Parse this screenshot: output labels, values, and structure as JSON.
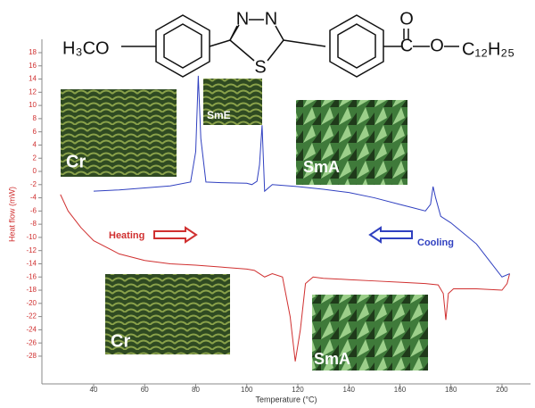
{
  "chart_data": {
    "type": "line",
    "xlabel": "Temperature (°C)",
    "ylabel": "Heat flow (mW)",
    "xlim": [
      20,
      210
    ],
    "xticks": [
      40,
      60,
      80,
      100,
      120,
      140,
      160,
      180,
      200
    ],
    "ylim": [
      -32,
      20
    ],
    "yticks": [
      -28,
      -26,
      -24,
      -22,
      -20,
      -18,
      -16,
      -14,
      -12,
      -10,
      -8,
      -6,
      -4,
      -2,
      0,
      2,
      4,
      6,
      8,
      10,
      12,
      14,
      16,
      18
    ],
    "series": [
      {
        "name": "Heating",
        "color": "#d03030",
        "x": [
          27,
          30,
          35,
          40,
          50,
          60,
          70,
          80,
          90,
          100,
          103,
          105,
          107,
          110,
          114,
          117,
          119,
          121,
          123,
          126,
          130,
          140,
          150,
          160,
          170,
          175,
          177,
          178,
          179,
          181,
          185,
          190,
          195,
          200,
          202,
          203
        ],
        "values": [
          -3.5,
          -6,
          -8.5,
          -10.5,
          -12.5,
          -13.5,
          -14,
          -14.2,
          -14.5,
          -14.8,
          -15,
          -15.5,
          -16,
          -15.5,
          -16,
          -22,
          -28.8,
          -24,
          -17,
          -16,
          -16.2,
          -16.4,
          -16.6,
          -16.8,
          -17,
          -17.2,
          -18.5,
          -22.5,
          -18.5,
          -17.8,
          -17.8,
          -17.8,
          -17.9,
          -18,
          -17,
          -15.5
        ]
      },
      {
        "name": "Cooling",
        "color": "#3040c0",
        "x": [
          203,
          200,
          195,
          190,
          180,
          176,
          174,
          173,
          172,
          170,
          165,
          160,
          150,
          140,
          130,
          120,
          110,
          107,
          106,
          105,
          104,
          102,
          100,
          90,
          84,
          82,
          81,
          80,
          78,
          70,
          60,
          50,
          40
        ],
        "values": [
          -15.5,
          -16,
          -13.5,
          -11,
          -7.8,
          -6.8,
          -4,
          -2.3,
          -5,
          -6,
          -5.5,
          -5,
          -4,
          -3.2,
          -2.7,
          -2.3,
          -2,
          -3,
          7,
          1,
          -1.5,
          -2,
          -1.8,
          -1.7,
          -1.6,
          5,
          14.5,
          3,
          -1.6,
          -2.2,
          -2.5,
          -2.8,
          -3
        ]
      }
    ],
    "annotations": [
      "Heating",
      "Cooling",
      "Cr",
      "SmE",
      "SmA",
      "Cr",
      "SmA"
    ]
  },
  "structure": {
    "labels": [
      "H₃CO",
      "N",
      "N",
      "S",
      "O",
      "C",
      "O",
      "C₁₂H₂₅"
    ]
  }
}
